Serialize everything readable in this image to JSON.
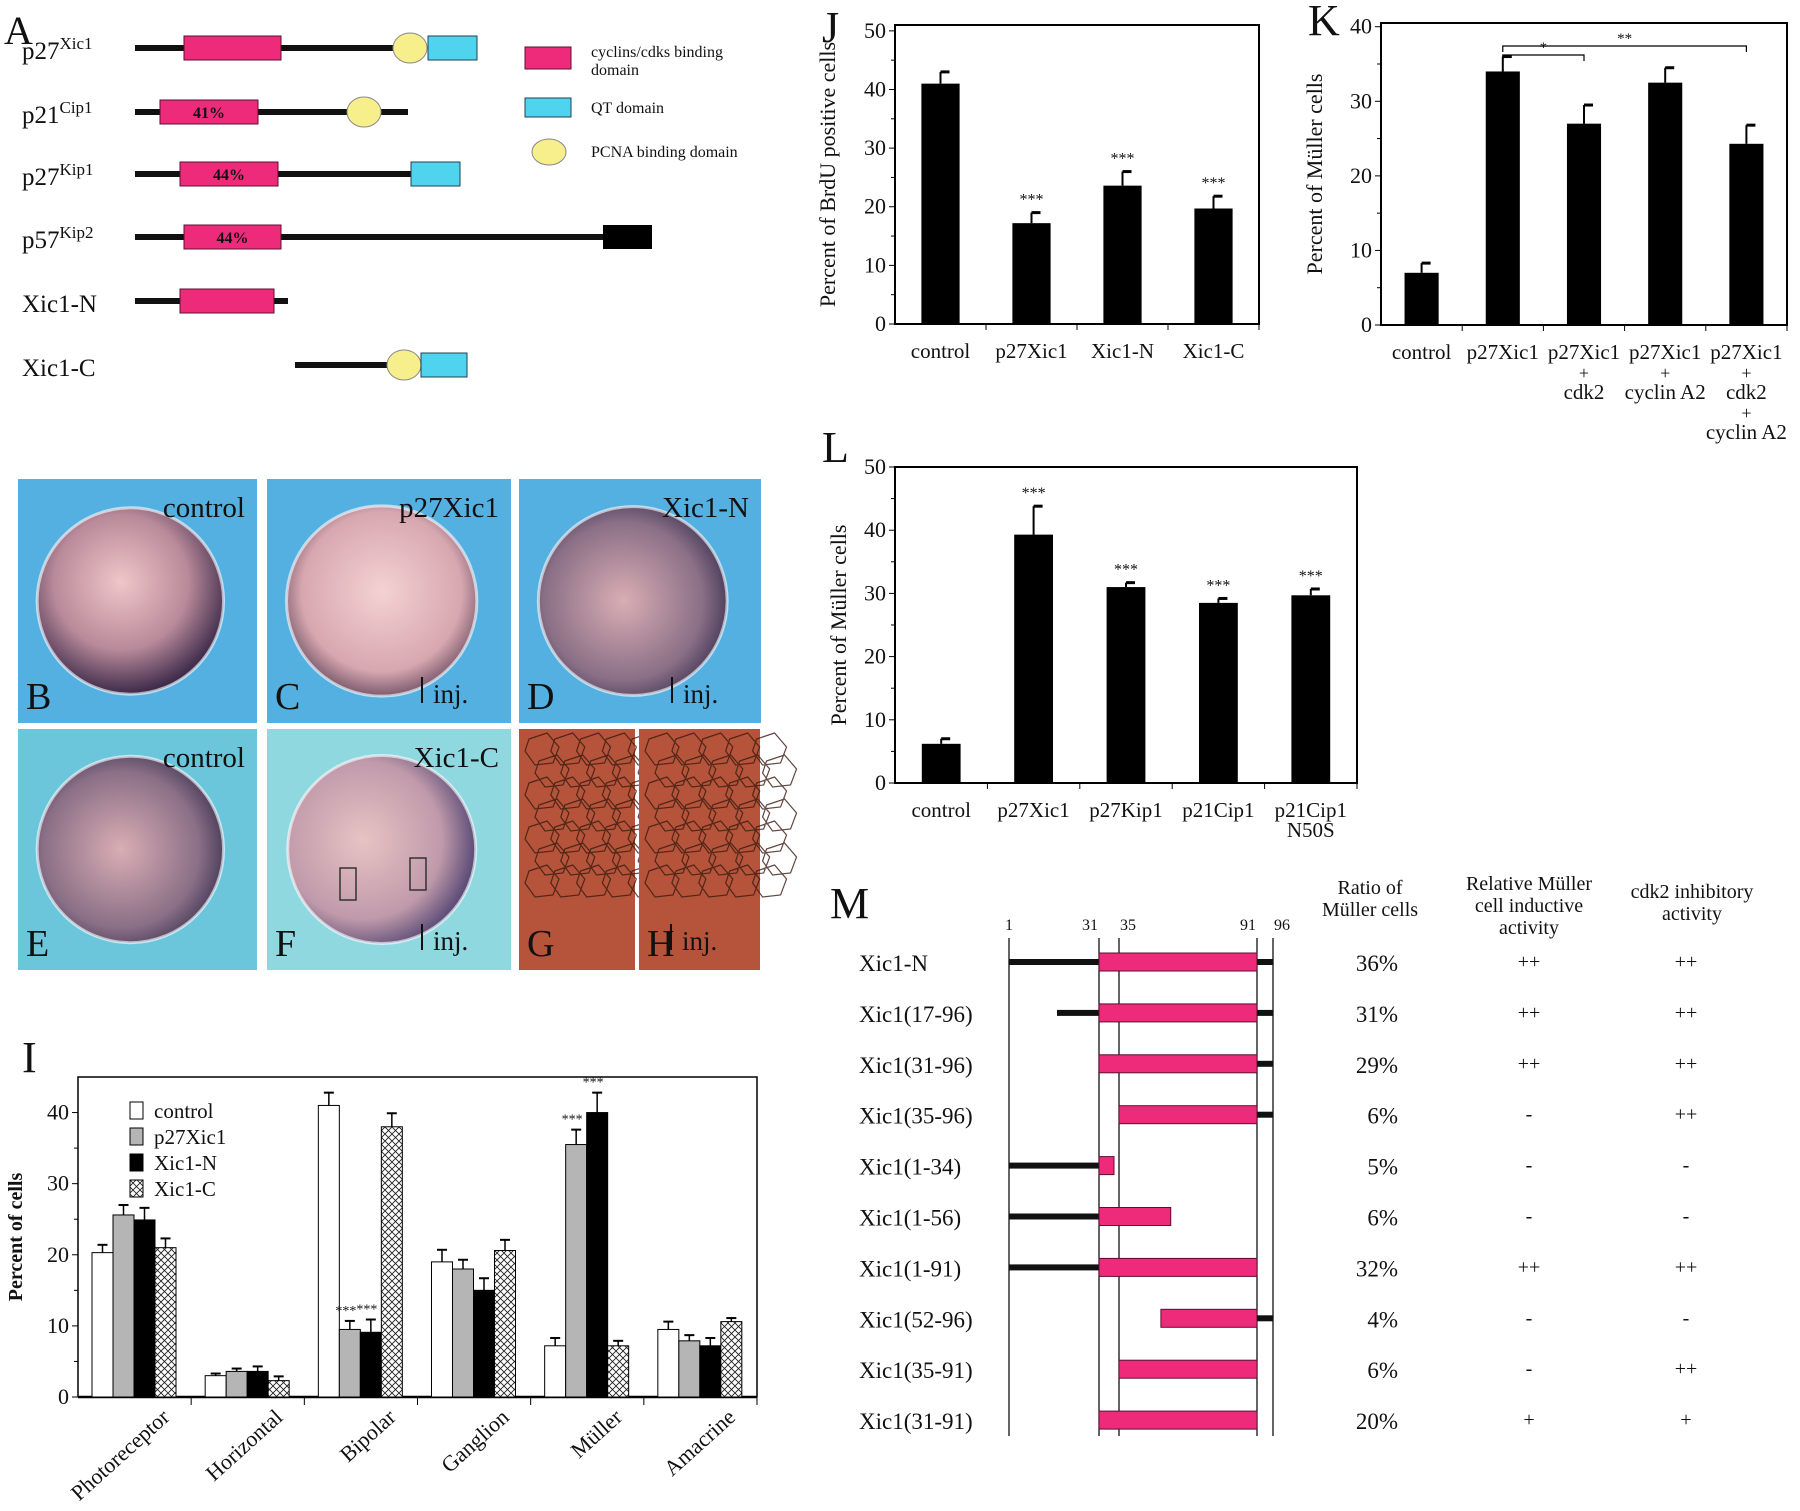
{
  "panel_letters": {
    "A": "A",
    "B": "B",
    "C": "C",
    "D": "D",
    "E": "E",
    "F": "F",
    "G": "G",
    "H": "H",
    "I": "I",
    "J": "J",
    "K": "K",
    "L": "L",
    "M": "M"
  },
  "colors": {
    "cyclin_domain": "#ee2b7b",
    "qt_domain": "#4fd3ee",
    "pcna_domain": "#f7ef8c",
    "bar": "#000000",
    "p27Xic1_bar": "#b5b5b5",
    "photo_blue": "#55b0e2",
    "photo_cyan": "#8fd8e0",
    "photo_tissue": "#b5543a"
  },
  "panel_a": {
    "proteins": [
      {
        "name": "p27",
        "sup": "Xic1",
        "identity": ""
      },
      {
        "name": "p21",
        "sup": "Cip1",
        "identity": "41%"
      },
      {
        "name": "p27",
        "sup": "Kip1",
        "identity": "44%"
      },
      {
        "name": "p57",
        "sup": "Kip2",
        "identity": "44%"
      },
      {
        "name": "Xic1-N",
        "sup": "",
        "identity": ""
      },
      {
        "name": "Xic1-C",
        "sup": "",
        "identity": ""
      }
    ],
    "legend": {
      "cyclin": "cyclins/cdks binding",
      "cyclin2": "domain",
      "qt": "QT domain",
      "pcna": "PCNA binding domain"
    }
  },
  "photos": {
    "B": {
      "label": "control",
      "inj": ""
    },
    "C": {
      "label": "p27Xic1",
      "inj": "inj."
    },
    "D": {
      "label": "Xic1-N",
      "inj": "inj."
    },
    "E": {
      "label": "control",
      "inj": ""
    },
    "F": {
      "label": "Xic1-C",
      "inj": "inj."
    },
    "G": {
      "label": "",
      "inj": ""
    },
    "H": {
      "label": "",
      "inj": "inj."
    }
  },
  "chart_data": [
    {
      "id": "I",
      "type": "bar",
      "ylabel": "Percent of cells",
      "ylim": [
        0,
        45
      ],
      "yticks": [
        0,
        10,
        20,
        30,
        40
      ],
      "categories": [
        "Photoreceptor",
        "Horizontal",
        "Bipolar",
        "Ganglion",
        "Müller",
        "Amacrine"
      ],
      "series": [
        {
          "name": "control",
          "values": [
            20.3,
            3,
            41,
            19,
            7.2,
            9.5
          ],
          "err": [
            1.1,
            0.3,
            1.8,
            1.7,
            1.1,
            1.1
          ],
          "sig": [
            "",
            "",
            "",
            "",
            "",
            ""
          ]
        },
        {
          "name": "p27Xic1",
          "values": [
            25.6,
            3.6,
            9.5,
            18,
            35.5,
            7.9
          ],
          "err": [
            1.4,
            0.4,
            1.2,
            1.3,
            2.1,
            0.8
          ],
          "sig": [
            "",
            "",
            "***",
            "",
            "***",
            ""
          ]
        },
        {
          "name": "Xic1-N",
          "values": [
            24.9,
            3.6,
            9.1,
            15,
            40,
            7.2
          ],
          "err": [
            1.7,
            0.7,
            1.8,
            1.7,
            2.8,
            1.1
          ],
          "sig": [
            "",
            "",
            "***",
            "",
            "***",
            ""
          ]
        },
        {
          "name": "Xic1-C",
          "values": [
            21,
            2.3,
            38,
            20.6,
            7.2,
            10.6
          ],
          "err": [
            1.3,
            0.6,
            1.9,
            1.5,
            0.7,
            0.5
          ],
          "sig": [
            "",
            "",
            "",
            "",
            "",
            ""
          ]
        }
      ],
      "legend": "top-left"
    },
    {
      "id": "J",
      "type": "bar",
      "ylabel": "Percent of BrdU positive cells",
      "ylim": [
        0,
        51
      ],
      "yticks": [
        0,
        10,
        20,
        30,
        40,
        50
      ],
      "categories": [
        [
          "control"
        ],
        [
          "p27Xic1"
        ],
        [
          "Xic1-N"
        ],
        [
          "Xic1-C"
        ]
      ],
      "values": [
        41,
        17.2,
        23.6,
        19.7
      ],
      "err": [
        2,
        1.8,
        2.4,
        2.1
      ],
      "sig": [
        "",
        "***",
        "***",
        "***"
      ]
    },
    {
      "id": "K",
      "type": "bar",
      "ylabel": "Percent of Müller cells",
      "ylim": [
        0,
        40.5
      ],
      "yticks": [
        0,
        10,
        20,
        30,
        40
      ],
      "categories": [
        [
          "control"
        ],
        [
          "p27Xic1"
        ],
        [
          "p27Xic1",
          "+",
          "cdk2"
        ],
        [
          "p27Xic1",
          "+",
          "cyclin A2"
        ],
        [
          "p27Xic1",
          "+",
          "cdk2",
          "+",
          "cyclin A2"
        ]
      ],
      "values": [
        7,
        34,
        27,
        32.5,
        24.3
      ],
      "err": [
        1.3,
        2,
        2.5,
        2,
        2.5
      ],
      "sig": [
        "",
        "",
        "",
        "",
        ""
      ],
      "brackets": [
        {
          "from": 1,
          "to": 2,
          "label": "*"
        },
        {
          "from": 1,
          "to": 4,
          "label": "**"
        }
      ]
    },
    {
      "id": "L",
      "type": "bar",
      "ylabel": "Percent of Müller cells",
      "ylim": [
        0,
        50
      ],
      "yticks": [
        0,
        10,
        20,
        30,
        40,
        50
      ],
      "categories": [
        [
          "control"
        ],
        [
          "p27Xic1"
        ],
        [
          "p27Kip1"
        ],
        [
          "p21Cip1"
        ],
        [
          "p21Cip1",
          "N50S"
        ]
      ],
      "values": [
        6.2,
        39.3,
        31,
        28.5,
        29.7
      ],
      "err": [
        0.8,
        4.5,
        0.7,
        0.7,
        1
      ],
      "sig": [
        "",
        "***",
        "***",
        "***",
        "***"
      ]
    }
  ],
  "panel_m": {
    "residue_ticks": [
      1,
      31,
      35,
      91,
      96
    ],
    "headers": {
      "ratio": [
        "Ratio of",
        "Müller cells"
      ],
      "inductive": [
        "Relative Müller",
        "cell inductive",
        "activity"
      ],
      "cdk2": [
        "cdk2 inhibitory",
        "activity"
      ]
    },
    "rows": [
      {
        "name": "Xic1-N",
        "start": 1,
        "end": 96,
        "ratio": "36%",
        "inductive": "++",
        "cdk2": "++"
      },
      {
        "name": "Xic1(17-96)",
        "start": 17,
        "end": 96,
        "ratio": "31%",
        "inductive": "++",
        "cdk2": "++"
      },
      {
        "name": "Xic1(31-96)",
        "start": 31,
        "end": 96,
        "ratio": "29%",
        "inductive": "++",
        "cdk2": "++"
      },
      {
        "name": "Xic1(35-96)",
        "start": 35,
        "end": 96,
        "ratio": "6%",
        "inductive": "-",
        "cdk2": "++"
      },
      {
        "name": "Xic1(1-34)",
        "start": 1,
        "end": 34,
        "ratio": "5%",
        "inductive": "-",
        "cdk2": "-"
      },
      {
        "name": "Xic1(1-56)",
        "start": 1,
        "end": 56,
        "ratio": "6%",
        "inductive": "-",
        "cdk2": "-"
      },
      {
        "name": "Xic1(1-91)",
        "start": 1,
        "end": 91,
        "ratio": "32%",
        "inductive": "++",
        "cdk2": "++"
      },
      {
        "name": "Xic1(52-96)",
        "start": 52,
        "end": 96,
        "ratio": "4%",
        "inductive": "-",
        "cdk2": "-"
      },
      {
        "name": "Xic1(35-91)",
        "start": 35,
        "end": 91,
        "ratio": "6%",
        "inductive": "-",
        "cdk2": "++"
      },
      {
        "name": "Xic1(31-91)",
        "start": 31,
        "end": 91,
        "ratio": "20%",
        "inductive": "+",
        "cdk2": "+"
      }
    ]
  }
}
